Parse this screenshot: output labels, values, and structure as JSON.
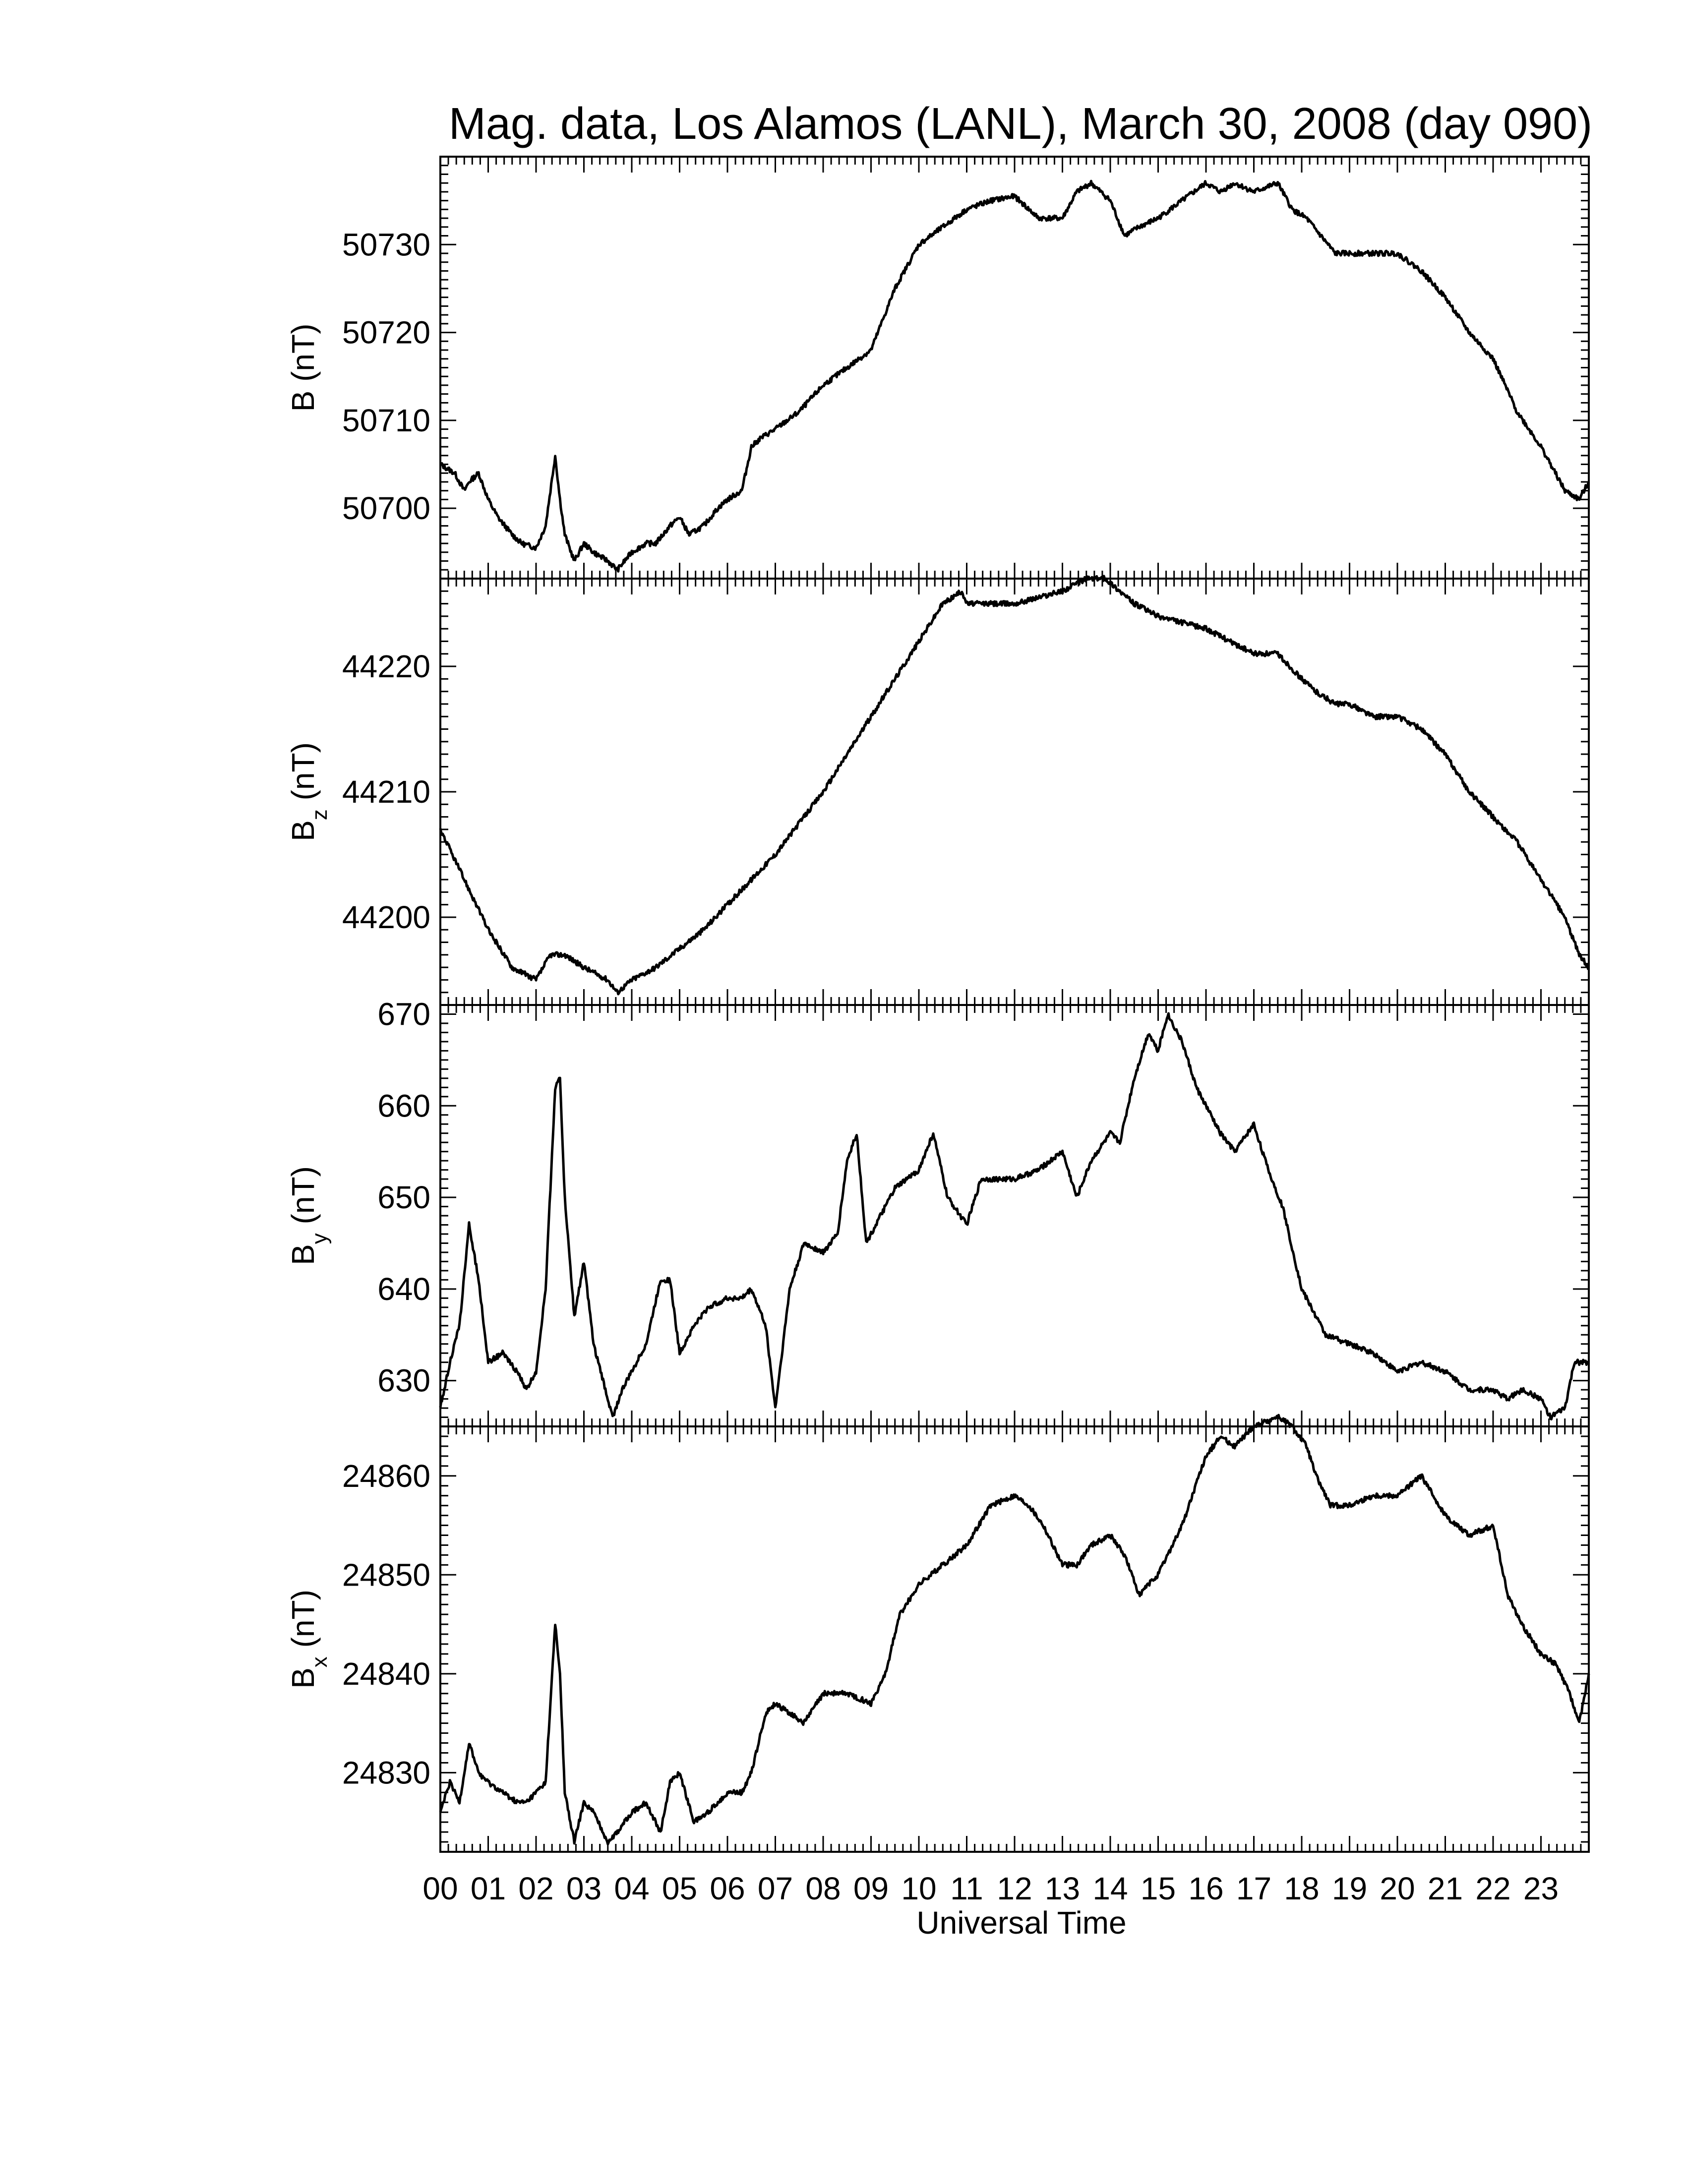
{
  "title": "Mag. data, Los Alamos (LANL), March 30, 2008 (day 090)",
  "xlabel": "Universal Time",
  "x_tick_labels": [
    "00",
    "01",
    "02",
    "03",
    "04",
    "05",
    "06",
    "07",
    "08",
    "09",
    "10",
    "11",
    "12",
    "13",
    "14",
    "15",
    "16",
    "17",
    "18",
    "19",
    "20",
    "21",
    "22",
    "23"
  ],
  "panels": [
    {
      "ylabel_main": "B",
      "ylabel_sub": "",
      "ylabel_unit": " (nT)"
    },
    {
      "ylabel_main": "B",
      "ylabel_sub": "z",
      "ylabel_unit": " (nT)"
    },
    {
      "ylabel_main": "B",
      "ylabel_sub": "y",
      "ylabel_unit": " (nT)"
    },
    {
      "ylabel_main": "B",
      "ylabel_sub": "x",
      "ylabel_unit": " (nT)"
    }
  ],
  "line_color": "#000000",
  "chart_data": [
    {
      "type": "line",
      "xlabel": "Universal Time",
      "ylabel": "B (nT)",
      "xlim": [
        0,
        24
      ],
      "ylim": [
        50692,
        50740
      ],
      "yticks": [
        50700,
        50710,
        50720,
        50730
      ],
      "series": [
        {
          "x": [
            0,
            0.3,
            0.5,
            0.6,
            0.8,
            1.0,
            1.2,
            1.5,
            1.7,
            2.0,
            2.2,
            2.4,
            2.5,
            2.6,
            2.8,
            3.0,
            3.2,
            3.5,
            3.7,
            4.0,
            4.3,
            4.5,
            4.8,
            5.0,
            5.2,
            5.5,
            5.8,
            6.0,
            6.3,
            6.5,
            6.7,
            7.0,
            7.5,
            8.0,
            8.5,
            9.0,
            9.5,
            10.0,
            10.5,
            11.0,
            11.5,
            12.0,
            12.5,
            13.0,
            13.3,
            13.6,
            14.0,
            14.3,
            14.6,
            15.0,
            15.5,
            16.0,
            16.3,
            16.6,
            17.0,
            17.5,
            17.8,
            18.1,
            18.4,
            18.7,
            19.0,
            19.5,
            20.0,
            20.5,
            21.0,
            21.5,
            22.0,
            22.5,
            23.0,
            23.5,
            23.8,
            24.0
          ],
          "y": [
            50705,
            50704,
            50702,
            50703,
            50704,
            50701,
            50699,
            50697,
            50696,
            50695.5,
            50698,
            50706,
            50701,
            50697,
            50694,
            50696,
            50695,
            50694,
            50693,
            50695,
            50696,
            50696,
            50698,
            50699,
            50697,
            50698,
            50700,
            50701,
            50702,
            50707,
            50708,
            50709,
            50711,
            50714,
            50716,
            50718,
            50725,
            50730,
            50732,
            50734,
            50735,
            50735.5,
            50733,
            50733,
            50736,
            50737,
            50735,
            50731,
            50732,
            50733,
            50735,
            50737,
            50736,
            50737,
            50736,
            50737,
            50734,
            50733,
            50731,
            50729,
            50729,
            50729,
            50729,
            50727,
            50724,
            50720,
            50717,
            50711,
            50707,
            50702,
            50701,
            50703
          ]
        }
      ]
    },
    {
      "type": "line",
      "xlabel": "Universal Time",
      "ylabel": "Bz (nT)",
      "xlim": [
        0,
        24
      ],
      "ylim": [
        44193,
        44227
      ],
      "yticks": [
        44200,
        44210,
        44220
      ],
      "series": [
        {
          "x": [
            0,
            0.5,
            1.0,
            1.5,
            2.0,
            2.3,
            2.6,
            3.0,
            3.5,
            3.7,
            4.0,
            4.5,
            5.0,
            5.5,
            6.0,
            6.5,
            7.0,
            7.5,
            8.0,
            8.5,
            9.0,
            9.5,
            10.0,
            10.5,
            10.9,
            11.0,
            11.5,
            12.0,
            12.5,
            13.0,
            13.5,
            13.9,
            14.2,
            14.5,
            15.0,
            15.5,
            16.0,
            16.5,
            17.0,
            17.5,
            18.0,
            18.3,
            18.7,
            19.0,
            19.5,
            20.0,
            20.5,
            21.0,
            21.5,
            22.0,
            22.5,
            23.0,
            23.5,
            23.8,
            24.0
          ],
          "y": [
            44207,
            44203,
            44199,
            44196,
            44195,
            44197,
            44197,
            44196,
            44195,
            44194,
            44195,
            44196,
            44197.5,
            44199,
            44201,
            44203,
            44205,
            44207.5,
            44210,
            44213,
            44216,
            44219,
            44222,
            44225,
            44226,
            44225,
            44225,
            44225,
            44225.5,
            44226,
            44227,
            44227,
            44226,
            44225,
            44224,
            44223.5,
            44223,
            44222,
            44221,
            44221,
            44219,
            44218,
            44217,
            44217,
            44216,
            44216,
            44215,
            44213,
            44210,
            44208,
            44206,
            44203,
            44200,
            44197,
            44196
          ]
        }
      ]
    },
    {
      "type": "line",
      "xlabel": "Universal Time",
      "ylabel": "By (nT)",
      "xlim": [
        0,
        24
      ],
      "ylim": [
        625,
        671
      ],
      "yticks": [
        630,
        640,
        650,
        660,
        670
      ],
      "series": [
        {
          "x": [
            0,
            0.2,
            0.4,
            0.6,
            0.8,
            1.0,
            1.3,
            1.6,
            1.8,
            2.0,
            2.2,
            2.4,
            2.5,
            2.6,
            2.8,
            3.0,
            3.2,
            3.4,
            3.6,
            3.8,
            4.0,
            4.3,
            4.6,
            4.8,
            5.0,
            5.3,
            5.6,
            6.0,
            6.3,
            6.5,
            6.8,
            7.0,
            7.3,
            7.6,
            8.0,
            8.3,
            8.5,
            8.7,
            8.9,
            9.2,
            9.5,
            10.0,
            10.3,
            10.6,
            11.0,
            11.3,
            11.6,
            12.0,
            12.5,
            13.0,
            13.3,
            13.6,
            14.0,
            14.2,
            14.5,
            14.8,
            15.0,
            15.2,
            15.5,
            15.8,
            16.0,
            16.3,
            16.6,
            17.0,
            17.3,
            17.6,
            18.0,
            18.5,
            19.0,
            19.5,
            20.0,
            20.5,
            21.0,
            21.5,
            22.0,
            22.3,
            22.6,
            23.0,
            23.2,
            23.5,
            23.7,
            24.0
          ],
          "y": [
            627,
            632,
            636,
            647,
            641,
            632,
            633,
            631,
            629,
            631,
            640,
            662,
            663,
            650,
            637,
            643,
            634,
            630,
            626,
            629,
            631,
            634,
            641,
            641,
            633,
            636,
            638,
            639,
            639,
            640,
            636,
            627,
            640,
            645,
            644,
            646,
            654,
            657,
            645,
            648,
            651,
            653,
            657,
            650,
            647,
            652,
            652,
            652,
            653,
            655,
            650,
            654,
            657,
            656,
            663,
            668,
            666,
            670,
            667,
            662,
            660,
            657,
            655,
            658,
            653,
            649,
            640,
            635,
            634,
            633,
            631,
            632,
            631,
            629,
            629,
            628,
            629,
            628,
            626,
            627,
            632,
            632
          ]
        }
      ]
    },
    {
      "type": "line",
      "xlabel": "Universal Time",
      "ylabel": "Bx (nT)",
      "xlim": [
        0,
        24
      ],
      "ylim": [
        24822,
        24865
      ],
      "yticks": [
        24830,
        24840,
        24850,
        24860
      ],
      "series": [
        {
          "x": [
            0,
            0.2,
            0.4,
            0.6,
            0.8,
            1.0,
            1.3,
            1.6,
            1.8,
            2.0,
            2.2,
            2.4,
            2.5,
            2.6,
            2.8,
            3.0,
            3.2,
            3.5,
            3.7,
            4.0,
            4.3,
            4.6,
            4.8,
            5.0,
            5.3,
            5.6,
            6.0,
            6.3,
            6.5,
            6.8,
            7.0,
            7.3,
            7.6,
            8.0,
            8.5,
            9.0,
            9.3,
            9.6,
            10.0,
            10.5,
            11.0,
            11.5,
            12.0,
            12.3,
            12.6,
            13.0,
            13.3,
            13.6,
            14.0,
            14.3,
            14.6,
            15.0,
            15.5,
            16.0,
            16.3,
            16.6,
            17.0,
            17.5,
            17.8,
            18.1,
            18.3,
            18.6,
            19.0,
            19.5,
            20.0,
            20.5,
            21.0,
            21.5,
            22.0,
            22.3,
            22.6,
            23.0,
            23.3,
            23.6,
            23.8,
            24.0
          ],
          "y": [
            24826,
            24829,
            24827,
            24833,
            24830,
            24829,
            24828,
            24827,
            24827,
            24828,
            24829,
            24845,
            24840,
            24828,
            24823,
            24827,
            24826,
            24823,
            24824,
            24826,
            24827,
            24824,
            24829,
            24830,
            24825,
            24826,
            24828,
            24828,
            24830,
            24836,
            24837,
            24836,
            24835,
            24838,
            24838,
            24837,
            24840,
            24846,
            24849,
            24851,
            24853,
            24857,
            24858,
            24857,
            24855,
            24851,
            24851,
            24853,
            24854,
            24852,
            24848,
            24850,
            24855,
            24862,
            24864,
            24863,
            24865,
            24866,
            24865,
            24863,
            24860,
            24857,
            24857,
            24858,
            24858,
            24860,
            24856,
            24854,
            24855,
            24848,
            24845,
            24842,
            24841,
            24838,
            24835,
            24840
          ]
        }
      ]
    }
  ]
}
